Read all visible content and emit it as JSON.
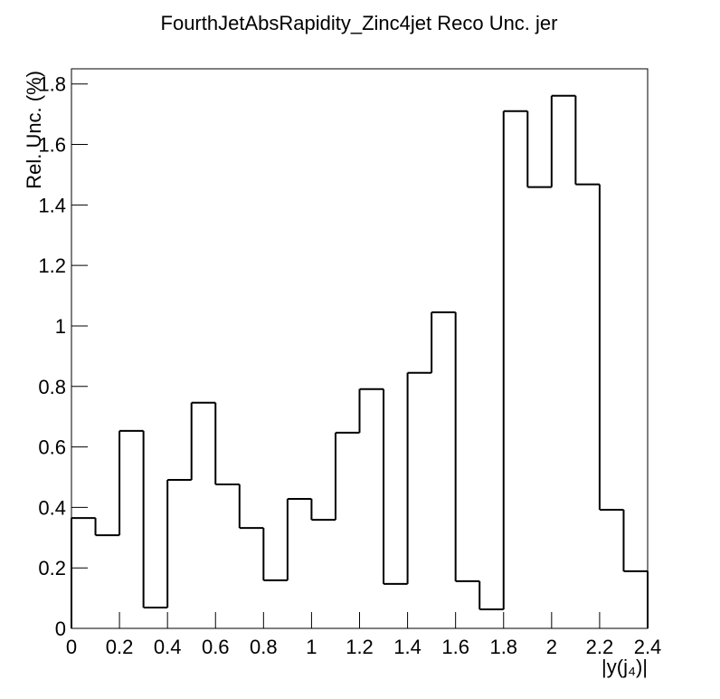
{
  "chart_data": {
    "type": "histogram",
    "title": "FourthJetAbsRapidity_Zinc4jet Reco Unc. jer",
    "x_label": "|y(j₄)|",
    "y_label": "Rel. Unc. (%)",
    "bins": [
      0,
      0.1,
      0.2,
      0.3,
      0.4,
      0.5,
      0.6,
      0.7,
      0.8,
      0.9,
      1,
      1.1,
      1.2,
      1.3,
      1.4,
      1.5,
      1.6,
      1.7,
      1.8,
      1.9,
      2,
      2.1,
      2.2,
      2.3,
      2.4
    ],
    "values": [
      0.365,
      0.308,
      0.653,
      0.069,
      0.491,
      0.746,
      0.476,
      0.332,
      0.159,
      0.428,
      0.359,
      0.647,
      0.791,
      0.147,
      0.845,
      1.045,
      0.156,
      0.063,
      1.71,
      1.459,
      1.761,
      1.468,
      0.392,
      0.189
    ],
    "color": "#000000",
    "xlim": [
      0,
      2.4
    ],
    "ylim": [
      0,
      1.85
    ],
    "xticks": [
      0,
      0.2,
      0.4,
      0.6,
      0.8,
      1,
      1.2,
      1.4,
      1.6,
      1.8,
      2,
      2.2,
      2.4
    ],
    "yticks": [
      0,
      0.2,
      0.4,
      0.6,
      0.8,
      1,
      1.2,
      1.4,
      1.6,
      1.8
    ]
  }
}
